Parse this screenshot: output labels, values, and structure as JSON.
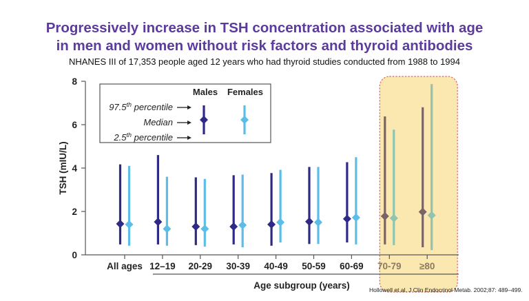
{
  "header": {
    "title_line1": "Progressively increase in TSH concentration associated with age",
    "title_line2": "in men and women without risk factors and thyroid antibodies",
    "subtitle": "NHANES III of 17,353 people aged 12 years who had thyroid studies conducted from 1988 to 1994"
  },
  "citation": "Hollowell et al. J Clin Endocrinol Metab. 2002;87: 489–499.",
  "colors": {
    "males": "#2e2a85",
    "females": "#5bbde8",
    "males_highlight": "#7a6466",
    "females_highlight": "#8fc4ae",
    "highlight_fill": "#fbe7b0",
    "highlight_border": "#d96a6a",
    "title": "#5b3b9c"
  },
  "chart_data": {
    "type": "range-dot",
    "title": "",
    "xlabel": "Age subgroup (years)",
    "ylabel": "TSH (mIU/L)",
    "ylim": [
      0,
      8
    ],
    "yticks": [
      0,
      2,
      4,
      6,
      8
    ],
    "grid": false,
    "categories": [
      "All ages",
      "12–19",
      "20-29",
      "30-39",
      "40-49",
      "50-59",
      "60-69",
      "70-79",
      "≥80"
    ],
    "highlighted_categories": [
      "70-79",
      "≥80"
    ],
    "series": [
      {
        "name": "Males",
        "median": [
          1.43,
          1.52,
          1.3,
          1.3,
          1.4,
          1.53,
          1.66,
          1.78,
          1.98
        ],
        "p97_5": [
          4.17,
          4.6,
          3.57,
          3.67,
          3.77,
          4.05,
          4.27,
          6.38,
          6.8
        ],
        "p2_5": [
          0.48,
          0.48,
          0.45,
          0.48,
          0.42,
          0.5,
          0.57,
          0.48,
          0.35
        ]
      },
      {
        "name": "Females",
        "median": [
          1.4,
          1.2,
          1.2,
          1.37,
          1.5,
          1.5,
          1.72,
          1.69,
          1.82
        ],
        "p97_5": [
          4.1,
          3.6,
          3.5,
          3.7,
          3.92,
          4.05,
          4.5,
          5.77,
          7.87
        ],
        "p2_5": [
          0.42,
          0.42,
          0.38,
          0.35,
          0.57,
          0.5,
          0.48,
          0.45,
          0.22
        ]
      }
    ],
    "legend": {
      "placement": "top-left",
      "headers": [
        "Males",
        "Females"
      ],
      "labels": [
        "97.5th percentile",
        "Median",
        "2.5th percentile"
      ],
      "label_parts": [
        {
          "pre": "97.5",
          "sup": "th",
          "post": " percentile"
        },
        {
          "pre": "Median",
          "sup": "",
          "post": ""
        },
        {
          "pre": "2.5",
          "sup": "th",
          "post": " percentile"
        }
      ]
    }
  }
}
